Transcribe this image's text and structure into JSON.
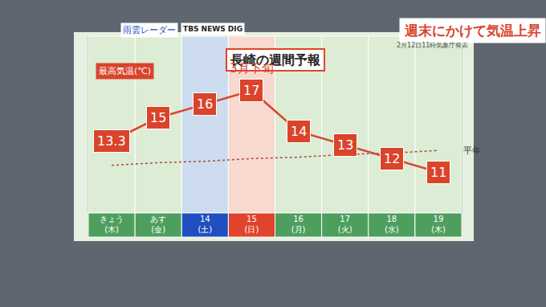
{
  "chart_data": {
    "type": "line",
    "title": "長崎の週間予報",
    "ylabel": "最高気温(℃)",
    "categories": [
      "きょう(木)",
      "あす(金)",
      "14(土)",
      "15(日)",
      "16(月)",
      "17(火)",
      "18(水)",
      "19(木)"
    ],
    "colors": [
      "#4e9f5e",
      "#4e9f5e",
      "#1f4fc0",
      "#e0442c",
      "#4e9f5e",
      "#4e9f5e",
      "#4e9f5e",
      "#4e9f5e"
    ],
    "series": [
      {
        "name": "最高気温",
        "color": "#d9442b",
        "line_style": "solid",
        "data_labels": true,
        "values": [
          13.3,
          15,
          16,
          17,
          14,
          13,
          12,
          11
        ]
      },
      {
        "name": "平年",
        "color": "#b0483a",
        "line_style": "dotted",
        "values": [
          11.5,
          11.7,
          11.8,
          12.0,
          12.1,
          12.3,
          12.4,
          12.6
        ]
      }
    ],
    "annotations": [
      {
        "text": "3月下旬",
        "category": "15(日)"
      }
    ],
    "ylim": [
      8,
      21
    ],
    "yticks": [],
    "grid": false,
    "tick_labels": "x"
  },
  "screen": {
    "banner": "週末にかけて気温上昇",
    "radar": "雨雲レーダー",
    "brand": "TBS NEWS DIG",
    "issued": "2月12日11時気象庁発表"
  }
}
